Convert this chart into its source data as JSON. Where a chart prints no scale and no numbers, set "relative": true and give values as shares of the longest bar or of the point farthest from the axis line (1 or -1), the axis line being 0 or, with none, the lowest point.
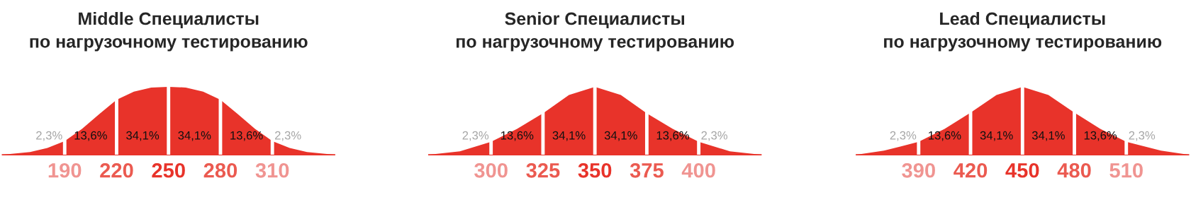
{
  "chart_data": [
    {
      "type": "area",
      "title": "Middle Специалисты\nпо нагрузочному тестированию",
      "relative": true,
      "grid": "x",
      "series": [
        {
          "color": "#e8332a",
          "x": [
            154,
            170,
            180,
            190,
            200,
            210,
            220,
            230,
            240,
            250,
            260,
            270,
            280,
            290,
            300,
            310,
            320,
            330,
            346
          ],
          "values": [
            0,
            0.04,
            0.1,
            0.2,
            0.38,
            0.6,
            0.81,
            0.93,
            0.99,
            1,
            0.99,
            0.93,
            0.81,
            0.6,
            0.38,
            0.2,
            0.1,
            0.04,
            0
          ]
        }
      ],
      "xlim": [
        154,
        346
      ],
      "xticks": [
        190,
        220,
        250,
        280,
        310
      ],
      "annotations": [
        "2,3%",
        "13,6%",
        "34,1%",
        "34,1%",
        "13,6%",
        "2,3%"
      ]
    },
    {
      "type": "area",
      "title": "Senior Специалисты\nпо нагрузочному тестированию",
      "relative": true,
      "grid": "x",
      "series": [
        {
          "color": "#e8332a",
          "x": [
            270,
            285,
            300,
            312.5,
            325,
            337.5,
            350,
            362.5,
            375,
            387.5,
            400,
            415,
            430
          ],
          "values": [
            0,
            0.05,
            0.19,
            0.38,
            0.61,
            0.88,
            1,
            0.88,
            0.61,
            0.38,
            0.19,
            0.05,
            0
          ]
        }
      ],
      "xlim": [
        270,
        430
      ],
      "xticks": [
        300,
        325,
        350,
        375,
        400
      ],
      "annotations": [
        "2,3%",
        "13,6%",
        "34,1%",
        "34,1%",
        "13,6%",
        "2,3%"
      ]
    },
    {
      "type": "area",
      "title": "Lead Специалисты\nпо нагрузочному тестированию",
      "relative": true,
      "grid": "x",
      "series": [
        {
          "color": "#e8332a",
          "x": [
            354,
            370,
            390,
            405,
            420,
            435,
            450,
            465,
            480,
            495,
            510,
            530,
            546
          ],
          "values": [
            0,
            0.06,
            0.19,
            0.38,
            0.62,
            0.88,
            1,
            0.88,
            0.62,
            0.38,
            0.19,
            0.06,
            0
          ]
        }
      ],
      "xlim": [
        354,
        546
      ],
      "xticks": [
        390,
        420,
        450,
        480,
        510
      ],
      "annotations": [
        "2,3%",
        "13,6%",
        "34,1%",
        "34,1%",
        "13,6%",
        "2,3%"
      ]
    }
  ]
}
